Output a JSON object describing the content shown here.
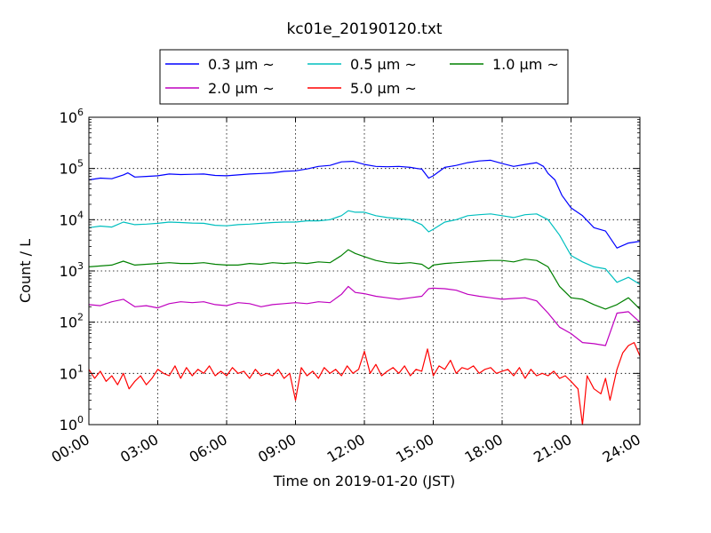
{
  "chart_data": {
    "type": "line",
    "title": "kc01e_20190120.txt",
    "xlabel": "Time on 2019-01-20 (JST)",
    "ylabel": "Count / L",
    "yscale": "log",
    "ylim": [
      1,
      1000000
    ],
    "xlim": [
      0,
      24
    ],
    "grid": true,
    "legend_position": "top-center",
    "x_ticks": [
      "00:00",
      "03:00",
      "06:00",
      "09:00",
      "12:00",
      "15:00",
      "18:00",
      "21:00",
      "24:00"
    ],
    "y_ticks": [
      {
        "base": "10",
        "exp": "0"
      },
      {
        "base": "10",
        "exp": "1"
      },
      {
        "base": "10",
        "exp": "2"
      },
      {
        "base": "10",
        "exp": "3"
      },
      {
        "base": "10",
        "exp": "4"
      },
      {
        "base": "10",
        "exp": "5"
      },
      {
        "base": "10",
        "exp": "6"
      }
    ],
    "series": [
      {
        "name": "0.3 μm ~",
        "color": "#0000ff",
        "points": [
          [
            0,
            60000
          ],
          [
            0.5,
            65000
          ],
          [
            1,
            63000
          ],
          [
            1.5,
            75000
          ],
          [
            1.7,
            82000
          ],
          [
            2,
            68000
          ],
          [
            2.5,
            70000
          ],
          [
            3,
            72000
          ],
          [
            3.5,
            78000
          ],
          [
            4,
            76000
          ],
          [
            4.5,
            77000
          ],
          [
            5,
            78000
          ],
          [
            5.5,
            73000
          ],
          [
            6,
            72000
          ],
          [
            6.5,
            75000
          ],
          [
            7,
            78000
          ],
          [
            7.5,
            80000
          ],
          [
            8,
            82000
          ],
          [
            8.5,
            88000
          ],
          [
            9,
            90000
          ],
          [
            9.5,
            98000
          ],
          [
            10,
            110000
          ],
          [
            10.5,
            115000
          ],
          [
            11,
            135000
          ],
          [
            11.5,
            138000
          ],
          [
            12,
            120000
          ],
          [
            12.5,
            110000
          ],
          [
            13,
            108000
          ],
          [
            13.5,
            110000
          ],
          [
            14,
            105000
          ],
          [
            14.3,
            100000
          ],
          [
            14.5,
            97000
          ],
          [
            14.8,
            65000
          ],
          [
            15,
            72000
          ],
          [
            15.5,
            105000
          ],
          [
            16,
            115000
          ],
          [
            16.5,
            130000
          ],
          [
            17,
            140000
          ],
          [
            17.5,
            145000
          ],
          [
            18,
            125000
          ],
          [
            18.5,
            110000
          ],
          [
            19,
            120000
          ],
          [
            19.5,
            130000
          ],
          [
            19.8,
            110000
          ],
          [
            20,
            80000
          ],
          [
            20.3,
            60000
          ],
          [
            20.6,
            30000
          ],
          [
            21,
            17000
          ],
          [
            21.5,
            12000
          ],
          [
            22,
            7000
          ],
          [
            22.5,
            6000
          ],
          [
            23,
            2800
          ],
          [
            23.5,
            3500
          ],
          [
            24,
            3800
          ]
        ]
      },
      {
        "name": "0.5 μm ~",
        "color": "#00bfbf",
        "points": [
          [
            0,
            7000
          ],
          [
            0.5,
            7500
          ],
          [
            1,
            7200
          ],
          [
            1.5,
            9000
          ],
          [
            2,
            8000
          ],
          [
            2.5,
            8200
          ],
          [
            3,
            8500
          ],
          [
            3.5,
            9000
          ],
          [
            4,
            8800
          ],
          [
            4.5,
            8600
          ],
          [
            5,
            8500
          ],
          [
            5.5,
            7800
          ],
          [
            6,
            7600
          ],
          [
            6.5,
            8000
          ],
          [
            7,
            8200
          ],
          [
            7.5,
            8500
          ],
          [
            8,
            8800
          ],
          [
            8.5,
            9000
          ],
          [
            9,
            9000
          ],
          [
            9.5,
            9500
          ],
          [
            10,
            9500
          ],
          [
            10.5,
            10000
          ],
          [
            11,
            12000
          ],
          [
            11.3,
            15000
          ],
          [
            11.6,
            14000
          ],
          [
            12,
            14000
          ],
          [
            12.5,
            12000
          ],
          [
            13,
            11000
          ],
          [
            13.5,
            10500
          ],
          [
            14,
            10000
          ],
          [
            14.5,
            8000
          ],
          [
            14.8,
            5800
          ],
          [
            15,
            6500
          ],
          [
            15.5,
            9000
          ],
          [
            16,
            10000
          ],
          [
            16.5,
            12000
          ],
          [
            17,
            12500
          ],
          [
            17.5,
            13000
          ],
          [
            18,
            12000
          ],
          [
            18.5,
            11000
          ],
          [
            19,
            12500
          ],
          [
            19.5,
            13000
          ],
          [
            20,
            10000
          ],
          [
            20.5,
            5000
          ],
          [
            21,
            2000
          ],
          [
            21.5,
            1500
          ],
          [
            22,
            1200
          ],
          [
            22.5,
            1100
          ],
          [
            23,
            600
          ],
          [
            23.5,
            750
          ],
          [
            24,
            550
          ]
        ]
      },
      {
        "name": "1.0 μm ~",
        "color": "#008000",
        "points": [
          [
            0,
            1200
          ],
          [
            0.5,
            1250
          ],
          [
            1,
            1300
          ],
          [
            1.5,
            1550
          ],
          [
            2,
            1300
          ],
          [
            2.5,
            1350
          ],
          [
            3,
            1400
          ],
          [
            3.5,
            1450
          ],
          [
            4,
            1400
          ],
          [
            4.5,
            1400
          ],
          [
            5,
            1450
          ],
          [
            5.5,
            1350
          ],
          [
            6,
            1300
          ],
          [
            6.5,
            1300
          ],
          [
            7,
            1400
          ],
          [
            7.5,
            1350
          ],
          [
            8,
            1450
          ],
          [
            8.5,
            1400
          ],
          [
            9,
            1450
          ],
          [
            9.5,
            1400
          ],
          [
            10,
            1500
          ],
          [
            10.5,
            1450
          ],
          [
            11,
            2000
          ],
          [
            11.3,
            2600
          ],
          [
            11.6,
            2200
          ],
          [
            12,
            1900
          ],
          [
            12.5,
            1600
          ],
          [
            13,
            1450
          ],
          [
            13.5,
            1400
          ],
          [
            14,
            1450
          ],
          [
            14.5,
            1350
          ],
          [
            14.8,
            1100
          ],
          [
            15,
            1300
          ],
          [
            15.5,
            1400
          ],
          [
            16,
            1450
          ],
          [
            16.5,
            1500
          ],
          [
            17,
            1550
          ],
          [
            17.5,
            1600
          ],
          [
            18,
            1600
          ],
          [
            18.5,
            1500
          ],
          [
            19,
            1700
          ],
          [
            19.5,
            1600
          ],
          [
            20,
            1200
          ],
          [
            20.5,
            500
          ],
          [
            21,
            300
          ],
          [
            21.5,
            280
          ],
          [
            22,
            220
          ],
          [
            22.5,
            180
          ],
          [
            23,
            220
          ],
          [
            23.5,
            300
          ],
          [
            24,
            180
          ]
        ]
      },
      {
        "name": "2.0 μm ~",
        "color": "#bf00bf",
        "points": [
          [
            0,
            220
          ],
          [
            0.5,
            210
          ],
          [
            1,
            250
          ],
          [
            1.5,
            280
          ],
          [
            2,
            200
          ],
          [
            2.5,
            210
          ],
          [
            3,
            190
          ],
          [
            3.5,
            230
          ],
          [
            4,
            250
          ],
          [
            4.5,
            240
          ],
          [
            5,
            250
          ],
          [
            5.5,
            220
          ],
          [
            6,
            210
          ],
          [
            6.5,
            240
          ],
          [
            7,
            230
          ],
          [
            7.5,
            200
          ],
          [
            8,
            220
          ],
          [
            8.5,
            230
          ],
          [
            9,
            240
          ],
          [
            9.5,
            230
          ],
          [
            10,
            250
          ],
          [
            10.5,
            240
          ],
          [
            11,
            350
          ],
          [
            11.3,
            500
          ],
          [
            11.6,
            380
          ],
          [
            12,
            360
          ],
          [
            12.5,
            320
          ],
          [
            13,
            300
          ],
          [
            13.5,
            280
          ],
          [
            14,
            300
          ],
          [
            14.5,
            320
          ],
          [
            14.8,
            450
          ],
          [
            15,
            460
          ],
          [
            15.5,
            450
          ],
          [
            16,
            420
          ],
          [
            16.5,
            350
          ],
          [
            17,
            320
          ],
          [
            17.5,
            300
          ],
          [
            18,
            280
          ],
          [
            18.5,
            290
          ],
          [
            19,
            300
          ],
          [
            19.5,
            260
          ],
          [
            20,
            150
          ],
          [
            20.5,
            80
          ],
          [
            21,
            60
          ],
          [
            21.5,
            40
          ],
          [
            22,
            38
          ],
          [
            22.5,
            35
          ],
          [
            23,
            150
          ],
          [
            23.5,
            160
          ],
          [
            24,
            100
          ]
        ]
      },
      {
        "name": "5.0 μm ~",
        "color": "#ff0000",
        "points": [
          [
            0,
            12
          ],
          [
            0.25,
            8
          ],
          [
            0.5,
            11
          ],
          [
            0.75,
            7
          ],
          [
            1,
            9
          ],
          [
            1.25,
            6
          ],
          [
            1.5,
            10
          ],
          [
            1.75,
            5
          ],
          [
            2,
            7
          ],
          [
            2.25,
            9
          ],
          [
            2.5,
            6
          ],
          [
            2.75,
            8
          ],
          [
            3,
            12
          ],
          [
            3.25,
            10
          ],
          [
            3.5,
            9
          ],
          [
            3.75,
            14
          ],
          [
            4,
            8
          ],
          [
            4.25,
            13
          ],
          [
            4.5,
            9
          ],
          [
            4.75,
            12
          ],
          [
            5,
            10
          ],
          [
            5.25,
            14
          ],
          [
            5.5,
            9
          ],
          [
            5.75,
            11
          ],
          [
            6,
            9
          ],
          [
            6.25,
            13
          ],
          [
            6.5,
            10
          ],
          [
            6.75,
            11
          ],
          [
            7,
            8
          ],
          [
            7.25,
            12
          ],
          [
            7.5,
            9
          ],
          [
            7.75,
            10
          ],
          [
            8,
            9
          ],
          [
            8.25,
            12
          ],
          [
            8.5,
            8
          ],
          [
            8.75,
            10
          ],
          [
            9,
            3
          ],
          [
            9.25,
            13
          ],
          [
            9.5,
            9
          ],
          [
            9.75,
            11
          ],
          [
            10,
            8
          ],
          [
            10.25,
            13
          ],
          [
            10.5,
            10
          ],
          [
            10.75,
            12
          ],
          [
            11,
            9
          ],
          [
            11.25,
            14
          ],
          [
            11.5,
            10
          ],
          [
            11.75,
            12
          ],
          [
            12,
            27
          ],
          [
            12.25,
            10
          ],
          [
            12.5,
            15
          ],
          [
            12.75,
            9
          ],
          [
            13,
            11
          ],
          [
            13.25,
            13
          ],
          [
            13.5,
            10
          ],
          [
            13.75,
            14
          ],
          [
            14,
            9
          ],
          [
            14.25,
            12
          ],
          [
            14.5,
            11
          ],
          [
            14.75,
            30
          ],
          [
            15,
            9
          ],
          [
            15.25,
            14
          ],
          [
            15.5,
            12
          ],
          [
            15.75,
            18
          ],
          [
            16,
            10
          ],
          [
            16.25,
            13
          ],
          [
            16.5,
            12
          ],
          [
            16.75,
            14
          ],
          [
            17,
            10
          ],
          [
            17.25,
            12
          ],
          [
            17.5,
            13
          ],
          [
            17.75,
            10
          ],
          [
            18,
            11
          ],
          [
            18.25,
            12
          ],
          [
            18.5,
            9
          ],
          [
            18.75,
            13
          ],
          [
            19,
            8
          ],
          [
            19.25,
            12
          ],
          [
            19.5,
            9
          ],
          [
            19.75,
            10
          ],
          [
            20,
            9
          ],
          [
            20.25,
            11
          ],
          [
            20.5,
            8
          ],
          [
            20.75,
            9
          ],
          [
            21,
            7
          ],
          [
            21.3,
            5
          ],
          [
            21.5,
            1
          ],
          [
            21.7,
            9
          ],
          [
            22,
            5
          ],
          [
            22.3,
            4
          ],
          [
            22.5,
            8
          ],
          [
            22.7,
            3
          ],
          [
            23,
            12
          ],
          [
            23.25,
            25
          ],
          [
            23.5,
            35
          ],
          [
            23.75,
            40
          ],
          [
            24,
            22
          ]
        ]
      }
    ]
  }
}
